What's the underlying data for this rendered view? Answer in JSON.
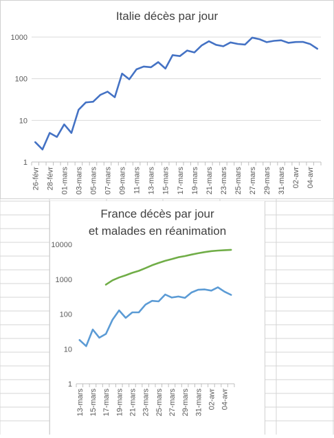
{
  "colors": {
    "italy_line": "#4472C4",
    "france_deaths_line": "#5B9BD5",
    "france_icu_line": "#70AD47",
    "gridline": "#d9d9d9",
    "text": "#595959"
  },
  "chart_data": [
    {
      "type": "line",
      "title": "Italie décès par jour",
      "scale": "log",
      "ylim": [
        1,
        1000
      ],
      "yticks": [
        "1",
        "10",
        "100",
        "1000"
      ],
      "grid": true,
      "x": [
        "26-févr",
        "27-févr",
        "28-févr",
        "29-févr",
        "01-mars",
        "02-mars",
        "03-mars",
        "04-mars",
        "05-mars",
        "06-mars",
        "07-mars",
        "08-mars",
        "09-mars",
        "10-mars",
        "11-mars",
        "12-mars",
        "13-mars",
        "14-mars",
        "15-mars",
        "16-mars",
        "17-mars",
        "18-mars",
        "19-mars",
        "20-mars",
        "21-mars",
        "22-mars",
        "23-mars",
        "24-mars",
        "25-mars",
        "26-mars",
        "27-mars",
        "28-mars",
        "29-mars",
        "30-mars",
        "31-mars",
        "01-avr",
        "02-avr",
        "03-avr",
        "04-avr",
        "05-avr"
      ],
      "xtick_labels": [
        "26-févr",
        "28-févr",
        "01-mars",
        "03-mars",
        "05-mars",
        "07-mars",
        "09-mars",
        "11-mars",
        "13-mars",
        "15-mars",
        "17-mars",
        "19-mars",
        "21-mars",
        "23-mars",
        "25-mars",
        "27-mars",
        "29-mars",
        "31-mars",
        "02-avr",
        "04-avr"
      ],
      "series": [
        {
          "values": [
            3,
            2,
            5,
            4,
            8,
            5,
            18,
            27,
            28,
            41,
            49,
            36,
            133,
            97,
            168,
            196,
            189,
            250,
            175,
            368,
            349,
            475,
            427,
            627,
            793,
            651,
            601,
            743,
            683,
            662,
            969,
            889,
            756,
            812,
            837,
            727,
            760,
            766,
            681,
            525
          ]
        }
      ]
    },
    {
      "type": "line",
      "title_lines": [
        "France décès par jour",
        "et malades en réanimation"
      ],
      "scale": "log",
      "ylim": [
        1,
        10000
      ],
      "yticks": [
        "1",
        "10",
        "100",
        "1000",
        "10000"
      ],
      "grid": false,
      "x": [
        "13-mars",
        "14-mars",
        "15-mars",
        "16-mars",
        "17-mars",
        "18-mars",
        "19-mars",
        "20-mars",
        "21-mars",
        "22-mars",
        "23-mars",
        "24-mars",
        "25-mars",
        "26-mars",
        "27-mars",
        "28-mars",
        "29-mars",
        "30-mars",
        "31-mars",
        "01-avr",
        "02-avr",
        "03-avr",
        "04-avr",
        "05-avr"
      ],
      "xtick_labels": [
        "13-mars",
        "15-mars",
        "17-mars",
        "19-mars",
        "21-mars",
        "23-mars",
        "25-mars",
        "27-mars",
        "29-mars",
        "31-mars",
        "02-avr",
        "04-avr"
      ],
      "series": [
        {
          "values": [
            18,
            12,
            36,
            21,
            27,
            69,
            128,
            78,
            112,
            112,
            186,
            240,
            231,
            365,
            299,
            319,
            292,
            418,
            499,
            509,
            471,
            588,
            441,
            357
          ]
        },
        {
          "values": [
            null,
            null,
            null,
            null,
            699,
            931,
            1122,
            1297,
            1525,
            1746,
            2082,
            2516,
            2935,
            3375,
            3787,
            4273,
            4632,
            5107,
            5565,
            6017,
            6399,
            6662,
            6838,
            6978
          ]
        }
      ]
    }
  ]
}
